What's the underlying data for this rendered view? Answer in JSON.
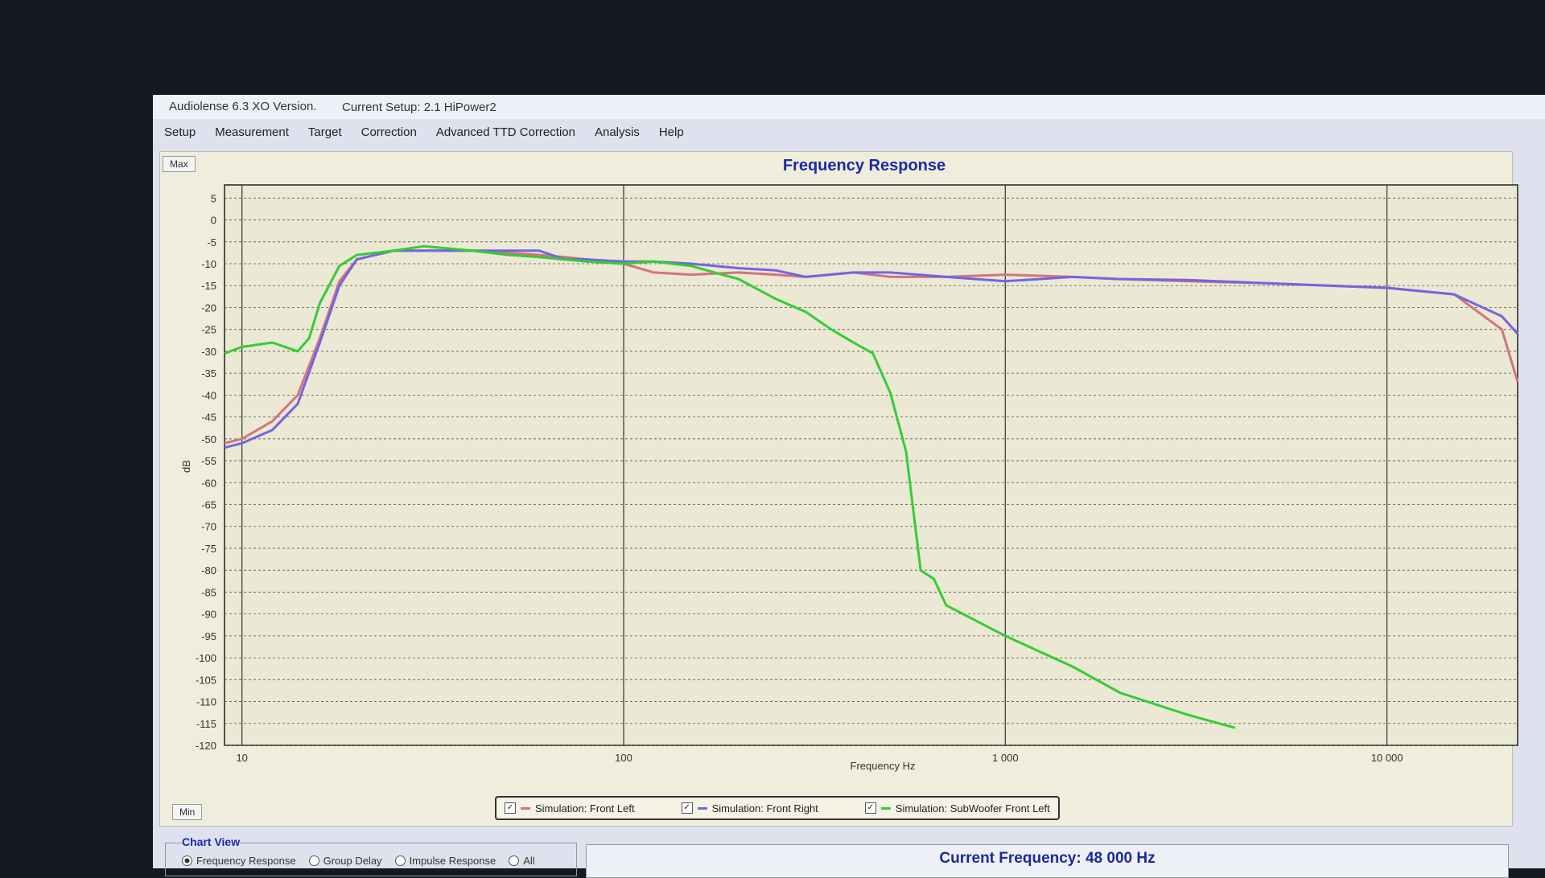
{
  "window": {
    "app_title": "Audiolense 6.3 XO Version.",
    "setup": "Current Setup: 2.1 HiPower2"
  },
  "menu": [
    "Setup",
    "Measurement",
    "Target",
    "Correction",
    "Advanced TTD Correction",
    "Analysis",
    "Help"
  ],
  "buttons": {
    "max": "Max",
    "min": "Min"
  },
  "chart_data": {
    "type": "line",
    "title": "Frequency Response",
    "x_label": "Frequency Hz",
    "y_label": "dB",
    "log_x": true,
    "grid": true,
    "xlim": [
      9,
      22000
    ],
    "ylim": [
      -120,
      8
    ],
    "xticks": [
      10,
      100,
      {
        "value": 1000,
        "label": "1 000"
      },
      {
        "value": 10000,
        "label": "10 000"
      }
    ],
    "yticks": [
      5,
      0,
      -5,
      -10,
      -15,
      -20,
      -25,
      -30,
      -35,
      -40,
      -45,
      -50,
      -55,
      -60,
      -65,
      -70,
      -75,
      -80,
      -85,
      -90,
      -95,
      -100,
      -105,
      -110,
      -115,
      -120
    ],
    "series": [
      {
        "name": "Simulation: Front Left",
        "color": "#d4737f",
        "x": [
          9,
          10,
          12,
          14,
          16,
          18,
          20,
          25,
          30,
          40,
          50,
          60,
          70,
          80,
          100,
          120,
          150,
          200,
          250,
          300,
          400,
          500,
          700,
          1000,
          1500,
          2000,
          3000,
          5000,
          7000,
          10000,
          15000,
          20000,
          22000
        ],
        "values": [
          -51,
          -50,
          -46,
          -40,
          -27,
          -14,
          -9,
          -7,
          -7,
          -7,
          -7.5,
          -8,
          -8.5,
          -9,
          -10,
          -12,
          -12.5,
          -12,
          -12.5,
          -13,
          -12,
          -13,
          -13,
          -12.5,
          -13,
          -13.5,
          -14,
          -14.5,
          -15,
          -15.5,
          -17,
          -25,
          -37
        ]
      },
      {
        "name": "Simulation: Front Right",
        "color": "#7266e0",
        "x": [
          9,
          10,
          12,
          14,
          16,
          18,
          20,
          25,
          30,
          40,
          50,
          60,
          70,
          80,
          100,
          120,
          150,
          200,
          250,
          300,
          400,
          500,
          700,
          1000,
          1500,
          2000,
          3000,
          5000,
          7000,
          10000,
          15000,
          20000,
          22000
        ],
        "values": [
          -52,
          -51,
          -48,
          -42,
          -28,
          -15,
          -9,
          -7,
          -7,
          -7,
          -7,
          -7,
          -9,
          -9,
          -9.5,
          -9.5,
          -10,
          -11,
          -11.5,
          -13,
          -12,
          -12,
          -13,
          -14,
          -13,
          -13.5,
          -13.7,
          -14.5,
          -15,
          -15.5,
          -17,
          -22,
          -26
        ]
      },
      {
        "name": "Simulation: SubWoofer Front Left",
        "color": "#35cc35",
        "x": [
          9,
          10,
          12,
          14,
          15,
          16,
          18,
          20,
          25,
          30,
          40,
          50,
          60,
          80,
          100,
          120,
          150,
          200,
          250,
          300,
          350,
          400,
          450,
          500,
          550,
          600,
          650,
          700,
          1000,
          1500,
          2000,
          3000,
          4000
        ],
        "values": [
          -30.5,
          -29,
          -28,
          -30,
          -27,
          -19,
          -10.5,
          -8,
          -7,
          -6,
          -7,
          -8,
          -8.5,
          -9.5,
          -10,
          -9.5,
          -10.5,
          -13.5,
          -18,
          -21,
          -25,
          -28,
          -30.5,
          -39.5,
          -53,
          -80,
          -82,
          -88,
          -95,
          -102,
          -108,
          -113,
          -116
        ]
      }
    ]
  },
  "chart_view": {
    "title": "Chart View",
    "options": [
      "Frequency Response",
      "Group Delay",
      "Impulse Response",
      "All"
    ]
  },
  "status": {
    "current_frequency": "Current Frequency: 48 000 Hz"
  }
}
